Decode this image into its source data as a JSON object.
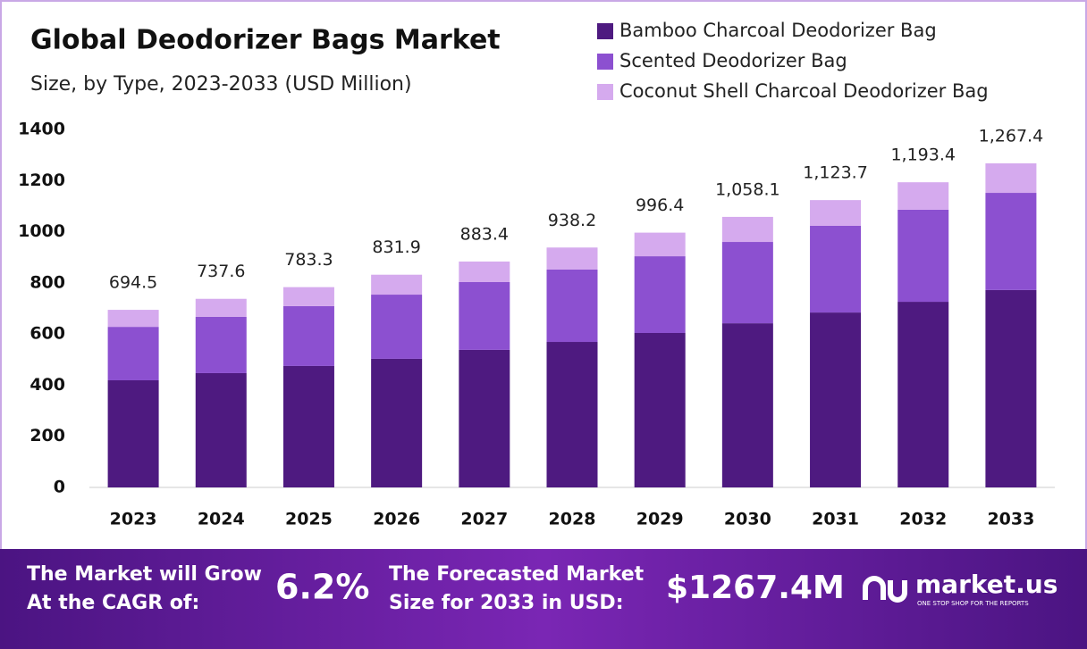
{
  "chart_data": {
    "type": "stacked-bar",
    "title": "Global Deodorizer Bags Market",
    "subtitle": "Size, by Type, 2023-2033 (USD Million)",
    "categories": [
      "2023",
      "2024",
      "2025",
      "2026",
      "2027",
      "2028",
      "2029",
      "2030",
      "2031",
      "2032",
      "2033"
    ],
    "series": [
      {
        "name": "Bamboo Charcoal Deodorizer Bag",
        "color": "#4e1a80",
        "values": [
          419,
          447,
          475,
          503,
          538,
          569,
          604,
          642,
          684,
          726,
          772
        ]
      },
      {
        "name": "Scented Deodorizer Bag",
        "color": "#8c50d0",
        "values": [
          209,
          220,
          234,
          251,
          265,
          283,
          300,
          318,
          339,
          360,
          380
        ]
      },
      {
        "name": "Coconut Shell Charcoal Deodorizer Bag",
        "color": "#d5aaee",
        "values": [
          66.5,
          70.6,
          74.3,
          77.9,
          80.4,
          86.2,
          92.4,
          98.1,
          100.7,
          107.4,
          115.4
        ]
      }
    ],
    "totals": [
      694.5,
      737.6,
      783.3,
      831.9,
      883.4,
      938.2,
      996.4,
      1058.1,
      1123.7,
      1193.4,
      1267.4
    ],
    "total_labels": [
      "694.5",
      "737.6",
      "783.3",
      "831.9",
      "883.4",
      "938.2",
      "996.4",
      "1,058.1",
      "1,123.7",
      "1,193.4",
      "1,267.4"
    ],
    "ylim": [
      0,
      1400
    ],
    "yticks": [
      0,
      200,
      400,
      600,
      800,
      1000,
      1200,
      1400
    ],
    "grid": false
  },
  "footer": {
    "cagr_text": "The Market will Grow At the CAGR of:",
    "cagr_value": "6.2%",
    "forecast_text": "The Forecasted Market Size for 2033 in USD:",
    "forecast_value": "$1267.4M",
    "brand": "market.us",
    "tagline": "ONE STOP SHOP FOR THE REPORTS"
  }
}
